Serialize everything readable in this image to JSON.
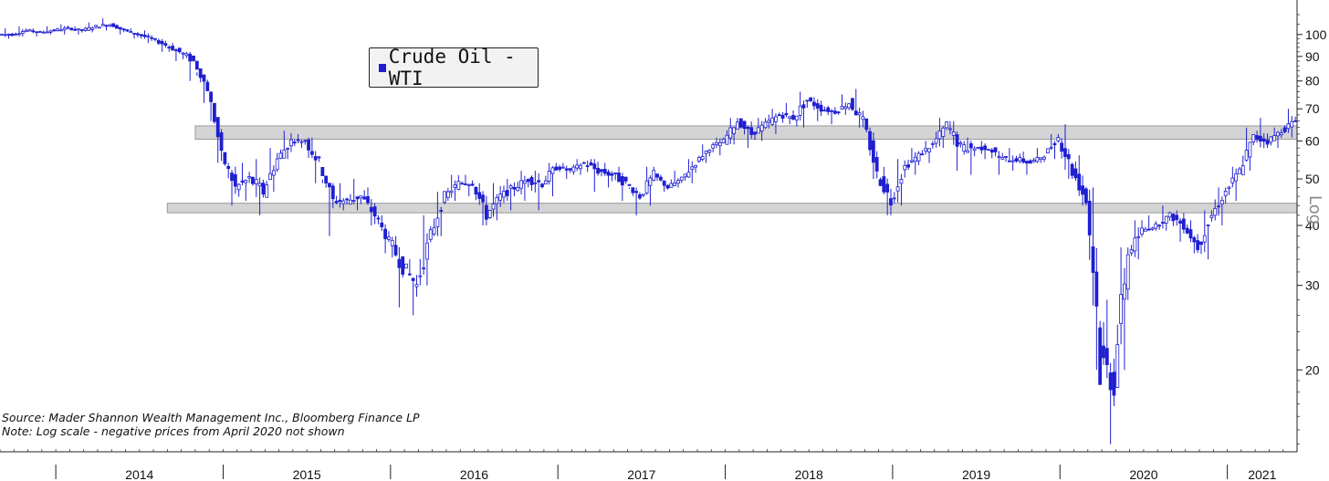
{
  "chart_data": {
    "type": "candlestick",
    "title": "",
    "legend": {
      "label": "Crude Oil - WTI",
      "color": "#1f1fd0",
      "position": "top-left"
    },
    "scale": "log",
    "scale_label": "Log",
    "y_ticks": [
      20,
      30,
      40,
      50,
      60,
      70,
      80,
      90,
      100
    ],
    "ylim": [
      13.5,
      118
    ],
    "x_ticks": [
      "2014",
      "2015",
      "2016",
      "2017",
      "2018",
      "2019",
      "2020",
      "2021"
    ],
    "x_range": [
      "2013-09",
      "2021-06"
    ],
    "grid": false,
    "resistance_band": [
      60.5,
      64.5
    ],
    "support_band": [
      42.5,
      44.5
    ],
    "series": [
      {
        "name": "Crude Oil - WTI",
        "x": [
          "2013-09",
          "2013-10",
          "2013-11",
          "2013-12",
          "2014-01",
          "2014-02",
          "2014-03",
          "2014-04",
          "2014-05",
          "2014-06",
          "2014-07",
          "2014-08",
          "2014-09",
          "2014-10",
          "2014-11",
          "2014-12",
          "2015-01",
          "2015-02",
          "2015-03",
          "2015-04",
          "2015-05",
          "2015-06",
          "2015-07",
          "2015-08",
          "2015-09",
          "2015-10",
          "2015-11",
          "2015-12",
          "2016-01",
          "2016-02",
          "2016-03",
          "2016-04",
          "2016-05",
          "2016-06",
          "2016-07",
          "2016-08",
          "2016-09",
          "2016-10",
          "2016-11",
          "2016-12",
          "2017-01",
          "2017-02",
          "2017-03",
          "2017-04",
          "2017-05",
          "2017-06",
          "2017-07",
          "2017-08",
          "2017-09",
          "2017-10",
          "2017-11",
          "2017-12",
          "2018-01",
          "2018-02",
          "2018-03",
          "2018-04",
          "2018-05",
          "2018-06",
          "2018-07",
          "2018-08",
          "2018-09",
          "2018-10",
          "2018-11",
          "2018-12",
          "2019-01",
          "2019-02",
          "2019-03",
          "2019-04",
          "2019-05",
          "2019-06",
          "2019-07",
          "2019-08",
          "2019-09",
          "2019-10",
          "2019-11",
          "2019-12",
          "2020-01",
          "2020-02",
          "2020-03",
          "2020-04",
          "2020-05",
          "2020-06",
          "2020-07",
          "2020-08",
          "2020-09",
          "2020-10",
          "2020-11",
          "2020-12",
          "2021-01",
          "2021-02",
          "2021-03",
          "2021-04",
          "2021-05"
        ],
        "close": [
          100,
          102,
          101,
          102,
          103,
          102,
          104,
          105,
          102,
          100,
          98,
          95,
          92,
          88,
          77,
          56,
          48,
          50,
          47,
          55,
          60,
          60,
          54,
          45,
          45,
          46,
          42,
          37,
          33,
          30,
          38,
          46,
          49,
          49,
          42,
          46,
          48,
          50,
          49,
          53,
          52,
          54,
          52,
          51,
          49,
          46,
          51,
          48,
          50,
          54,
          58,
          60,
          66,
          62,
          65,
          68,
          67,
          73,
          70,
          69,
          72,
          66,
          51,
          45,
          53,
          56,
          59,
          65,
          58,
          58,
          58,
          55,
          55,
          54,
          56,
          61,
          52,
          45,
          21,
          19,
          35,
          39,
          40,
          42,
          40,
          36,
          42,
          47,
          52,
          61,
          60,
          63,
          66
        ],
        "high": [
          103,
          104,
          103,
          104,
          105,
          104,
          106,
          108,
          105,
          103,
          102,
          98,
          96,
          92,
          82,
          66,
          54,
          54,
          55,
          58,
          63,
          62,
          61,
          49,
          49,
          50,
          48,
          42,
          38,
          34,
          42,
          47,
          51,
          51,
          49,
          49,
          50,
          52,
          52,
          54,
          54,
          55,
          55,
          54,
          53,
          48,
          53,
          51,
          52,
          55,
          59,
          61,
          67,
          66,
          67,
          70,
          72,
          76,
          74,
          71,
          75,
          77,
          64,
          53,
          55,
          58,
          60,
          67,
          66,
          61,
          60,
          58,
          58,
          57,
          58,
          62,
          65,
          56,
          48,
          28,
          36,
          41,
          42,
          44,
          43,
          41,
          43,
          48,
          53,
          64,
          67,
          64,
          70
        ],
        "low": [
          98,
          99,
          99,
          100,
          100,
          100,
          101,
          102,
          100,
          98,
          96,
          92,
          88,
          80,
          72,
          54,
          44,
          45,
          42,
          47,
          55,
          58,
          49,
          38,
          43,
          43,
          40,
          35,
          27,
          26,
          30,
          38,
          45,
          46,
          40,
          41,
          43,
          45,
          43,
          46,
          50,
          51,
          47,
          48,
          45,
          42,
          44,
          47,
          48,
          49,
          54,
          56,
          59,
          58,
          60,
          62,
          65,
          64,
          66,
          65,
          68,
          64,
          50,
          42,
          44,
          51,
          54,
          58,
          52,
          51,
          55,
          51,
          52,
          51,
          54,
          55,
          50,
          44,
          20,
          14,
          20,
          34,
          39,
          39,
          37,
          35,
          34,
          40,
          45,
          52,
          58,
          58,
          61
        ]
      }
    ]
  },
  "notes": {
    "source": "Source: Mader Shannon Wealth Management Inc., Bloomberg Finance LP",
    "note": "Note: Log scale - negative prices from April 2020 not shown"
  }
}
